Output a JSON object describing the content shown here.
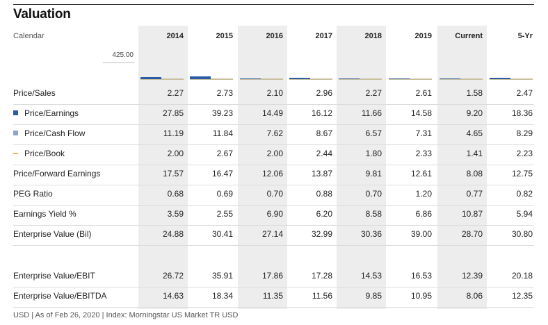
{
  "title": "Valuation",
  "calendar_label": "Calendar",
  "columns": [
    "2014",
    "2015",
    "2016",
    "2017",
    "2018",
    "2019",
    "Current",
    "5-Yr"
  ],
  "chart_max_label": "425.00",
  "chart_data": {
    "type": "bar",
    "categories": [
      "2014",
      "2015",
      "2016",
      "2017",
      "2018",
      "2019",
      "Current",
      "5-Yr"
    ],
    "series": [
      {
        "name": "Price/Earnings",
        "values": [
          27.85,
          39.23,
          14.49,
          16.12,
          11.66,
          14.58,
          9.2,
          18.36
        ]
      },
      {
        "name": "Price/Cash Flow",
        "values": [
          11.19,
          11.84,
          7.62,
          8.67,
          6.57,
          7.31,
          4.65,
          8.29
        ]
      },
      {
        "name": "Price/Book",
        "values": [
          2.0,
          2.67,
          2.0,
          2.44,
          1.8,
          2.33,
          1.41,
          2.23
        ]
      }
    ],
    "ylim": [
      0,
      425
    ],
    "colors": {
      "Price/Earnings": "#2a5ba4",
      "Price/Cash Flow": "#8fa3cf",
      "Price/Book": "#e8b84a"
    }
  },
  "rows": [
    {
      "label": "Price/Sales",
      "legend": "",
      "values": [
        "2.27",
        "2.73",
        "2.10",
        "2.96",
        "2.27",
        "2.61",
        "1.58",
        "2.47"
      ]
    },
    {
      "label": "Price/Earnings",
      "legend": "square-dark",
      "values": [
        "27.85",
        "39.23",
        "14.49",
        "16.12",
        "11.66",
        "14.58",
        "9.20",
        "18.36"
      ]
    },
    {
      "label": "Price/Cash Flow",
      "legend": "square-light",
      "values": [
        "11.19",
        "11.84",
        "7.62",
        "8.67",
        "6.57",
        "7.31",
        "4.65",
        "8.29"
      ]
    },
    {
      "label": "Price/Book",
      "legend": "line-gold",
      "values": [
        "2.00",
        "2.67",
        "2.00",
        "2.44",
        "1.80",
        "2.33",
        "1.41",
        "2.23"
      ]
    },
    {
      "label": "Price/Forward Earnings",
      "legend": "",
      "values": [
        "17.57",
        "16.47",
        "12.06",
        "13.87",
        "9.81",
        "12.61",
        "8.08",
        "12.75"
      ]
    },
    {
      "label": "PEG Ratio",
      "legend": "",
      "values": [
        "0.68",
        "0.69",
        "0.70",
        "0.88",
        "0.70",
        "1.20",
        "0.77",
        "0.82"
      ]
    },
    {
      "label": "Earnings Yield %",
      "legend": "",
      "values": [
        "3.59",
        "2.55",
        "6.90",
        "6.20",
        "8.58",
        "6.86",
        "10.87",
        "5.94"
      ]
    },
    {
      "label": "Enterprise Value (Bil)",
      "legend": "",
      "values": [
        "24.88",
        "30.41",
        "27.14",
        "32.99",
        "30.36",
        "39.00",
        "28.70",
        "30.80"
      ]
    },
    {
      "label": "Enterprise Value/EBIT",
      "legend": "",
      "values": [
        "26.72",
        "35.91",
        "17.86",
        "17.28",
        "14.53",
        "16.53",
        "12.39",
        "20.18"
      ]
    },
    {
      "label": "Enterprise Value/EBITDA",
      "legend": "",
      "values": [
        "14.63",
        "18.34",
        "11.35",
        "11.56",
        "9.85",
        "10.95",
        "8.06",
        "12.35"
      ]
    }
  ],
  "legend_colors": {
    "square-dark": "#2a5ba4",
    "square-light": "#8fa3cf",
    "line-gold": "#e8b84a"
  },
  "footer": "USD | As of Feb 26, 2020 | Index: Morningstar US Market TR USD"
}
